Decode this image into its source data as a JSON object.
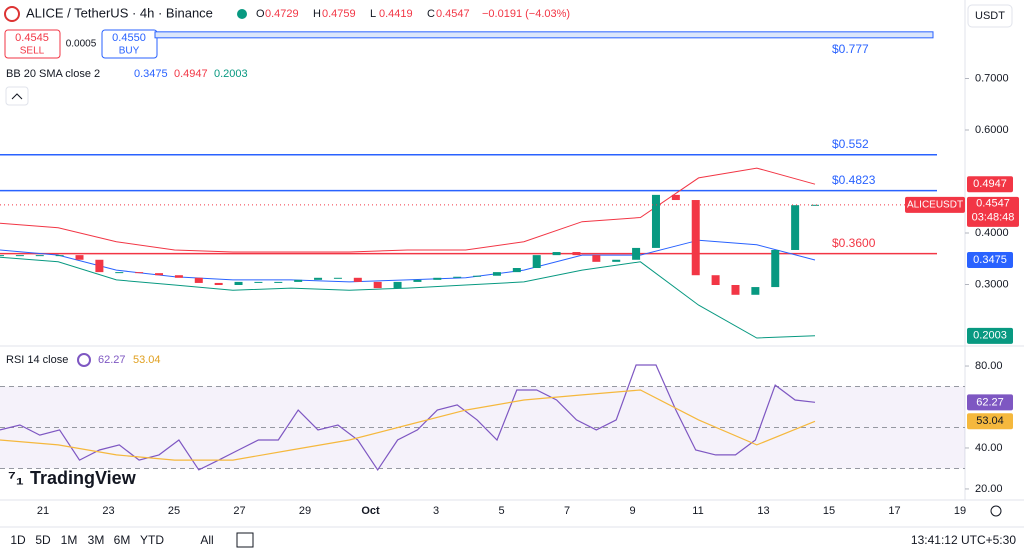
{
  "header": {
    "symbol": "ALICE / TetherUS · 4h · Binance",
    "ohlc": [
      {
        "key": "O",
        "value": "0.4729"
      },
      {
        "key": "H",
        "value": "0.4759"
      },
      {
        "key": "L",
        "value": "0.4419"
      },
      {
        "key": "C",
        "value": "0.4547"
      }
    ],
    "change": "−0.0191 (−4.03%)"
  },
  "trade": {
    "sell_price": "0.4545",
    "sell": "SELL",
    "spread": "0.0005",
    "buy_price": "0.4550",
    "buy": "BUY"
  },
  "currency": "USDT",
  "logo": "TradingView",
  "toolbar": {
    "ranges": [
      "1D",
      "5D",
      "1M",
      "3M",
      "6M",
      "YTD",
      "All"
    ],
    "clock": "13:41:12 UTC+5:30"
  },
  "chart_data": [
    {
      "type": "candlestick",
      "indicator_label": "BB 20 SMA close 2",
      "symbol_tag": "ALICEUSDT",
      "countdown": "03:48:48",
      "ylim": [
        0.1825,
        0.8524
      ],
      "yticks": [
        {
          "value": 0.3,
          "label": "0.3000"
        },
        {
          "value": 0.4,
          "label": "0.4000"
        },
        {
          "value": 0.6,
          "label": "0.6000"
        },
        {
          "value": 0.7,
          "label": "0.7000"
        }
      ],
      "grid": false,
      "x_labels": [
        "21",
        "23",
        "25",
        "27",
        "29",
        "Oct",
        "3",
        "5",
        "7",
        "9",
        "11",
        "13",
        "15",
        "17",
        "19"
      ],
      "series": [
        {
          "color_up": "#089981",
          "color_down": "#f23645",
          "values": [
            0.357,
            0.357,
            0.357,
            0.357,
            0.348,
            0.324,
            0.324,
            0.322,
            0.318,
            0.313,
            0.303,
            0.299,
            0.305,
            0.305,
            0.305,
            0.309,
            0.313,
            0.313,
            0.305,
            0.293,
            0.305,
            0.309,
            0.313,
            0.315,
            0.317,
            0.324,
            0.332,
            0.357,
            0.363,
            0.357,
            0.344,
            0.348,
            0.371,
            0.474,
            0.464,
            0.318,
            0.299,
            0.28,
            0.295,
            0.367,
            0.454,
            0.4547
          ]
        },
        {
          "color": "#2962ff",
          "values": [
            0.367,
            0.357,
            0.328,
            0.315,
            0.309,
            0.309,
            0.305,
            0.309,
            0.313,
            0.328,
            0.357,
            0.357,
            0.386,
            0.377,
            0.3475
          ]
        },
        {
          "color": "#f23645",
          "values": [
            0.419,
            0.41,
            0.383,
            0.367,
            0.363,
            0.363,
            0.363,
            0.367,
            0.367,
            0.383,
            0.422,
            0.43,
            0.507,
            0.526,
            0.4947
          ]
        },
        {
          "color": "#089981",
          "values": [
            0.353,
            0.344,
            0.309,
            0.299,
            0.289,
            0.293,
            0.289,
            0.293,
            0.299,
            0.305,
            0.328,
            0.344,
            0.26,
            0.196,
            0.2003
          ]
        }
      ],
      "levels": [
        {
          "value": 0.777,
          "label": "$0.777",
          "color": "#2962ff"
        },
        {
          "value": 0.552,
          "label": "$0.552",
          "color": "#2962ff"
        },
        {
          "value": 0.4823,
          "label": "$0.4823",
          "color": "#2962ff"
        },
        {
          "value": 0.36,
          "label": "$0.3600",
          "color": "#f23645"
        }
      ]
    },
    {
      "type": "line",
      "indicator_label": "RSI 14 close",
      "ylim": [
        14.6,
        88.8
      ],
      "yticks": [
        {
          "value": 20,
          "label": "20.00"
        },
        {
          "value": 40,
          "label": "40.00"
        },
        {
          "value": 80,
          "label": "80.00"
        }
      ],
      "bands": [
        30,
        50,
        70
      ],
      "series": [
        {
          "color": "#7e57c2",
          "values": [
            48.8,
            51.2,
            46.3,
            48.8,
            34.1,
            39.0,
            41.5,
            34.1,
            36.6,
            43.9,
            29.3,
            34.1,
            39.0,
            43.9,
            43.9,
            58.5,
            48.8,
            51.2,
            43.9,
            29.3,
            43.9,
            48.8,
            58.5,
            61.0,
            53.7,
            43.9,
            68.3,
            68.3,
            63.4,
            53.7,
            48.8,
            53.7,
            80.5,
            80.5,
            58.5,
            39.0,
            36.6,
            36.6,
            43.9,
            70.7,
            63.4,
            62.27
          ]
        },
        {
          "color": "#f5b83d",
          "values": [
            43.9,
            41.5,
            36.6,
            34.1,
            34.1,
            39.0,
            43.9,
            51.2,
            58.5,
            63.4,
            65.9,
            68.3,
            53.7,
            41.5,
            53.04
          ]
        }
      ]
    }
  ]
}
